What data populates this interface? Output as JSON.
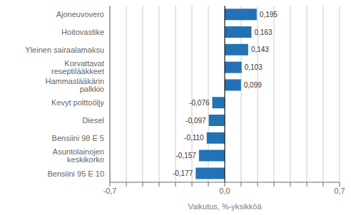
{
  "chart_data": {
    "type": "bar",
    "orientation": "horizontal",
    "categories": [
      "Bensiini 95 E 10",
      "Asuntolainojen keskikorko",
      "Bensiini 98 E 5",
      "Diesel",
      "Kevyt polttoöljy",
      "Hammaslääkärin palkkio",
      "Korvattavat reseptilääkkeet",
      "Yleinen sairaalamaksu",
      "Hoitovastike",
      "Ajoneuvovero"
    ],
    "values": [
      -0.177,
      -0.157,
      -0.11,
      -0.097,
      -0.076,
      0.099,
      0.103,
      0.143,
      0.163,
      0.195
    ],
    "value_labels": [
      "-0,177",
      "-0,157",
      "-0,110",
      "-0,097",
      "-0,076",
      "0,099",
      "0,103",
      "0,143",
      "0,163",
      "0,195"
    ],
    "data_labels": true,
    "color": "#2372b5",
    "xlabel": "Vaikutus, %-yksikköä",
    "xlim": [
      -0.7,
      0.7
    ],
    "xticks": [
      {
        "value": -0.7,
        "label": "-0,7"
      },
      {
        "value": -0.6,
        "label": null
      },
      {
        "value": -0.5,
        "label": null
      },
      {
        "value": -0.4,
        "label": null
      },
      {
        "value": -0.3,
        "label": null
      },
      {
        "value": -0.2,
        "label": null
      },
      {
        "value": -0.1,
        "label": null
      },
      {
        "value": 0,
        "label": "0,0"
      },
      {
        "value": 0.1,
        "label": null
      },
      {
        "value": 0.2,
        "label": null
      },
      {
        "value": 0.3,
        "label": null
      },
      {
        "value": 0.4,
        "label": null
      },
      {
        "value": 0.5,
        "label": null
      },
      {
        "value": 0.6,
        "label": null
      },
      {
        "value": 0.7,
        "label": "0,7"
      }
    ],
    "grid": true
  }
}
